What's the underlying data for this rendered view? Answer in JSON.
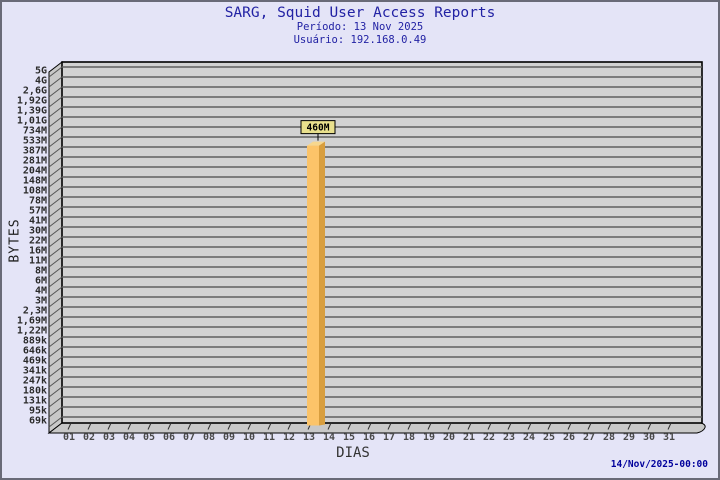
{
  "page": {
    "background": "#e4e4f7",
    "border_color": "#696a78"
  },
  "header": {
    "title": "SARG, Squid User Access Reports",
    "period": "Período: 13 Nov 2025",
    "user": "Usuário: 192.168.0.49",
    "color": "#2222a4"
  },
  "footer": {
    "timestamp": "14/Nov/2025-00:00",
    "color": "#00009c"
  },
  "chart_data": {
    "type": "bar",
    "title": "SARG, Squid User Access Reports",
    "subtitle_period": "Período: 13 Nov 2025",
    "subtitle_user": "Usuário: 192.168.0.49",
    "xlabel": "DIAS",
    "ylabel": "BYTES",
    "y_scale": "log",
    "y_min_value": 69000,
    "y_max_value": 5000000000,
    "y_tick_labels": [
      "5G",
      "4G",
      "2,6G",
      "1,92G",
      "1,39G",
      "1,01G",
      "734M",
      "533M",
      "387M",
      "281M",
      "204M",
      "148M",
      "108M",
      "78M",
      "57M",
      "41M",
      "30M",
      "22M",
      "16M",
      "11M",
      "8M",
      "6M",
      "4M",
      "3M",
      "2,3M",
      "1,69M",
      "1,22M",
      "889k",
      "646k",
      "469k",
      "341k",
      "247k",
      "180k",
      "131k",
      "95k",
      "69k"
    ],
    "categories": [
      "01",
      "02",
      "03",
      "04",
      "05",
      "06",
      "07",
      "08",
      "09",
      "10",
      "11",
      "12",
      "13",
      "14",
      "15",
      "16",
      "17",
      "18",
      "19",
      "20",
      "21",
      "22",
      "23",
      "24",
      "25",
      "26",
      "27",
      "28",
      "29",
      "30",
      "31"
    ],
    "values": [
      0,
      0,
      0,
      0,
      0,
      0,
      0,
      0,
      0,
      0,
      0,
      0,
      460000000,
      0,
      0,
      0,
      0,
      0,
      0,
      0,
      0,
      0,
      0,
      0,
      0,
      0,
      0,
      0,
      0,
      0,
      0
    ],
    "points": [
      {
        "day": "13",
        "value": 460000000,
        "label": "460M"
      }
    ],
    "legend": "none",
    "grid": "horizontal",
    "colors": {
      "panel": "#d2d2d2",
      "wall": "#c8c8c8",
      "grid": "#5f5f5f",
      "bar_front": "#fcc469",
      "bar_side": "#d89e3e",
      "bar_top": "#f7d78e",
      "annotation_bg": "#e9e08d",
      "annotation_border": "#000000"
    }
  }
}
